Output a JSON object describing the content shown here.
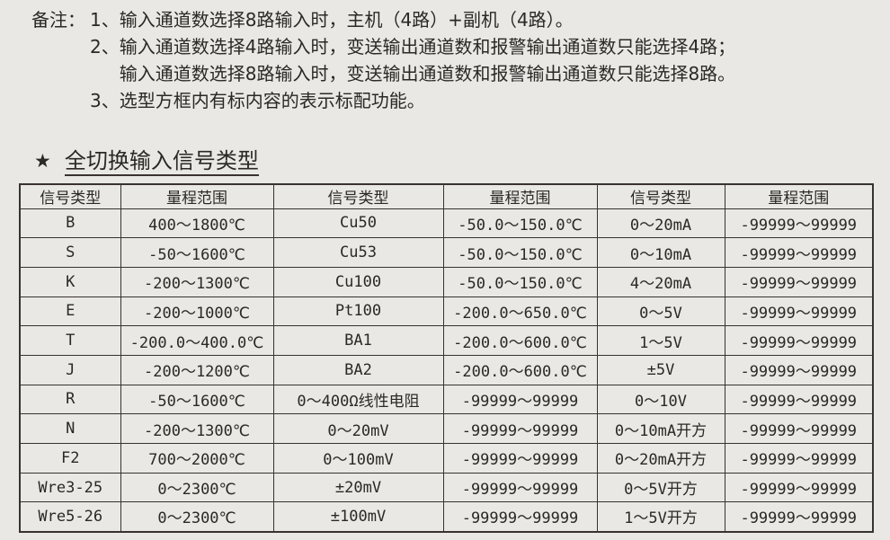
{
  "notes": {
    "label": "备注：",
    "items": [
      {
        "num": "1、",
        "lines": [
          "输入通道数选择8路输入时，主机（4路）+副机（4路）。"
        ]
      },
      {
        "num": "2、",
        "lines": [
          "输入通道数选择4路输入时，变送输出通道数和报警输出通道数只能选择4路；",
          "输入通道数选择8路输入时，变送输出通道数和报警输出通道数只能选择8路。"
        ]
      },
      {
        "num": "3、",
        "lines": [
          "选型方框内有标内容的表示标配功能。"
        ]
      }
    ]
  },
  "section": {
    "star_icon": "★",
    "title": "全切换输入信号类型"
  },
  "table": {
    "headers": [
      "信号类型",
      "量程范围",
      "信号类型",
      "量程范围",
      "信号类型",
      "量程范围"
    ],
    "rows": [
      [
        "B",
        "400～1800℃",
        "Cu50",
        "-50.0～150.0℃",
        "0～20mA",
        "-99999～99999"
      ],
      [
        "S",
        "-50～1600℃",
        "Cu53",
        "-50.0～150.0℃",
        "0～10mA",
        "-99999～99999"
      ],
      [
        "K",
        "-200～1300℃",
        "Cu100",
        "-50.0～150.0℃",
        "4～20mA",
        "-99999～99999"
      ],
      [
        "E",
        "-200～1000℃",
        "Pt100",
        "-200.0～650.0℃",
        "0～5V",
        "-99999～99999"
      ],
      [
        "T",
        "-200.0～400.0℃",
        "BA1",
        "-200.0～600.0℃",
        "1～5V",
        "-99999～99999"
      ],
      [
        "J",
        "-200～1200℃",
        "BA2",
        "-200.0～600.0℃",
        "±5V",
        "-99999～99999"
      ],
      [
        "R",
        "-50～1600℃",
        "0～400Ω线性电阻",
        "-99999～99999",
        "0～10V",
        "-99999～99999"
      ],
      [
        "N",
        "-200～1300℃",
        "0～20mV",
        "-99999～99999",
        "0～10mA开方",
        "-99999～99999"
      ],
      [
        "F2",
        "700～2000℃",
        "0～100mV",
        "-99999～99999",
        "0～20mA开方",
        "-99999～99999"
      ],
      [
        "Wre3-25",
        "0～2300℃",
        "±20mV",
        "-99999～99999",
        "0～5V开方",
        "-99999～99999"
      ],
      [
        "Wre5-26",
        "0～2300℃",
        "±100mV",
        "-99999～99999",
        "1～5V开方",
        "-99999～99999"
      ]
    ]
  },
  "colors": {
    "background": "#e9e8e5",
    "border": "#383230",
    "text": "#2b2826"
  }
}
